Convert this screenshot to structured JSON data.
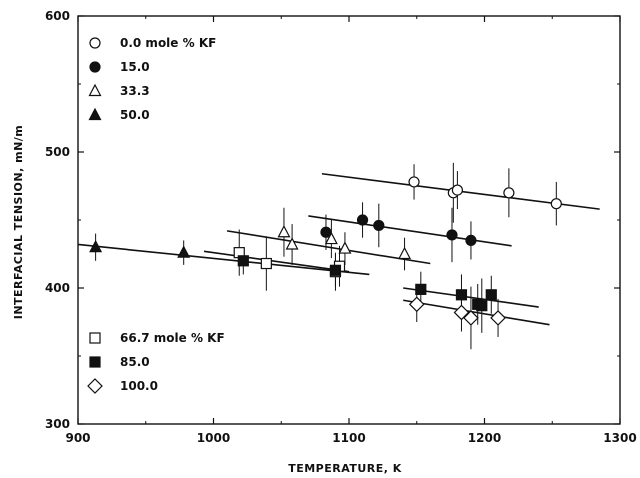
{
  "chart_data": {
    "type": "scatter",
    "xlabel": "TEMPERATURE, K",
    "ylabel": "INTERFACIAL TENSION, mN/m",
    "xlim": [
      900,
      1300
    ],
    "ylim": [
      300,
      600
    ],
    "x_ticks": [
      "900",
      "1000",
      "1100",
      "1200",
      "1300"
    ],
    "y_ticks": [
      "300",
      "400",
      "500",
      "600"
    ],
    "grid": false,
    "legend_placement": "top-left and bottom-left",
    "series": [
      {
        "name": "0.0 mole % KF",
        "marker": "open-circle",
        "points": [
          [
            1148,
            478
          ],
          [
            1177,
            470
          ],
          [
            1180,
            472
          ],
          [
            1218,
            470
          ],
          [
            1253,
            462
          ]
        ],
        "errors": [
          13,
          22,
          14,
          18,
          16
        ],
        "fit": [
          [
            1080,
            484
          ],
          [
            1285,
            458
          ]
        ]
      },
      {
        "name": "15.0",
        "marker": "filled-circle",
        "points": [
          [
            1083,
            441
          ],
          [
            1110,
            450
          ],
          [
            1122,
            446
          ],
          [
            1176,
            439
          ],
          [
            1190,
            435
          ]
        ],
        "errors": [
          13,
          13,
          16,
          20,
          14
        ],
        "fit": [
          [
            1070,
            453
          ],
          [
            1220,
            431
          ]
        ]
      },
      {
        "name": "33.3",
        "marker": "open-triangle",
        "points": [
          [
            1052,
            441
          ],
          [
            1058,
            432
          ],
          [
            1087,
            436
          ],
          [
            1097,
            429
          ],
          [
            1141,
            425
          ]
        ],
        "errors": [
          18,
          15,
          14,
          12,
          12
        ],
        "fit": [
          [
            1010,
            442
          ],
          [
            1160,
            418
          ]
        ]
      },
      {
        "name": "50.0",
        "marker": "filled-triangle",
        "points": [
          [
            913,
            430
          ],
          [
            978,
            426
          ]
        ],
        "errors": [
          10,
          9
        ],
        "fit": [
          [
            900,
            432
          ],
          [
            1115,
            410
          ]
        ]
      },
      {
        "name": "66.7 mole % KF",
        "marker": "open-square",
        "points": [
          [
            1019,
            426
          ],
          [
            1039,
            418
          ],
          [
            1090,
            412
          ],
          [
            1093,
            416
          ]
        ],
        "errors": [
          17,
          20,
          14,
          15
        ],
        "fit": [
          [
            993,
            427
          ],
          [
            1100,
            412
          ]
        ]
      },
      {
        "name": "85.0",
        "marker": "filled-square",
        "points": [
          [
            1022,
            420
          ],
          [
            1090,
            413
          ],
          [
            1153,
            399
          ],
          [
            1183,
            395
          ],
          [
            1195,
            388
          ],
          [
            1198,
            387
          ],
          [
            1205,
            395
          ]
        ],
        "errors": [
          10,
          12,
          13,
          15,
          15,
          20,
          14
        ],
        "fit": [
          [
            1140,
            400
          ],
          [
            1240,
            386
          ]
        ]
      },
      {
        "name": "100.0",
        "marker": "open-diamond",
        "points": [
          [
            1150,
            388
          ],
          [
            1183,
            382
          ],
          [
            1190,
            378
          ],
          [
            1210,
            378
          ]
        ],
        "errors": [
          13,
          14,
          23,
          14
        ],
        "fit": [
          [
            1140,
            391
          ],
          [
            1248,
            373
          ]
        ]
      }
    ],
    "legend": {
      "top": [
        "0.0 mole % KF",
        "15.0",
        "33.3",
        "50.0"
      ],
      "bottom": [
        "66.7 mole % KF",
        "85.0",
        "100.0"
      ]
    }
  }
}
